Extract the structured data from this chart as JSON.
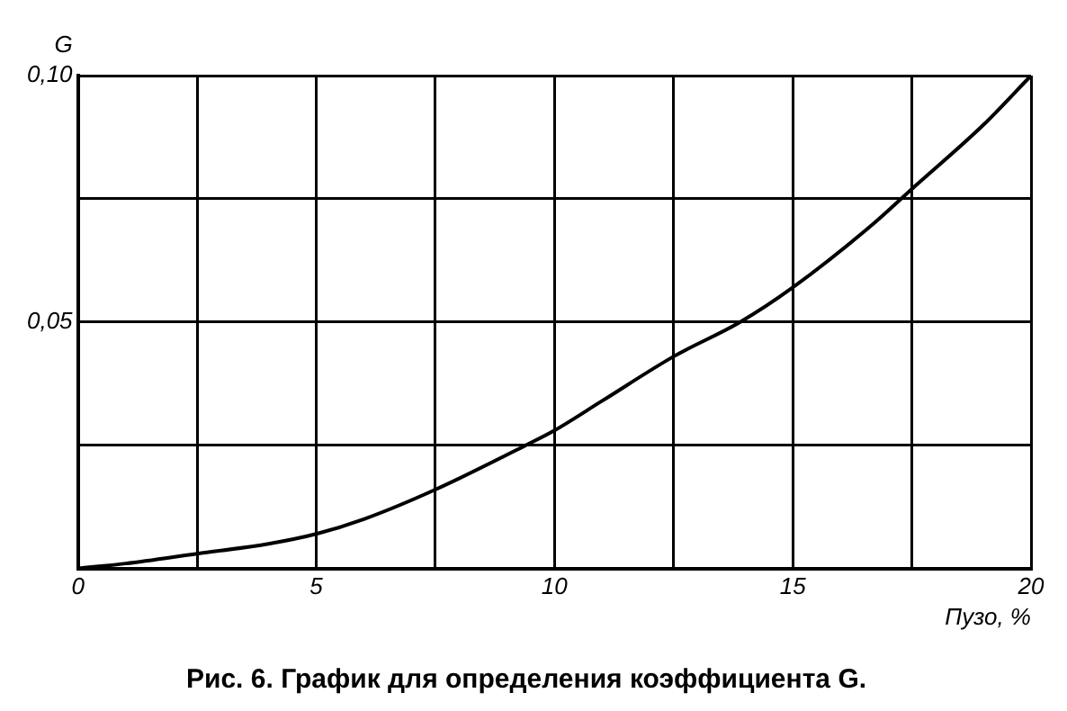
{
  "chart_data": {
    "type": "line",
    "title": "Рис. 6. График для определения коэффициента G.",
    "xlabel": "Пузо, %",
    "ylabel": "G",
    "x": [
      0,
      1,
      2.5,
      4,
      5,
      6,
      7.5,
      9.4,
      10,
      11,
      12.5,
      13.9,
      15,
      16.7,
      17.5,
      19,
      20
    ],
    "series": [
      {
        "color": "#000000",
        "values": [
          0,
          0.001,
          0.003,
          0.005,
          0.007,
          0.01,
          0.016,
          0.025,
          0.028,
          0.034,
          0.043,
          0.05,
          0.057,
          0.07,
          0.077,
          0.09,
          0.1
        ]
      }
    ],
    "xlim": [
      0,
      20
    ],
    "ylim": [
      0,
      0.1
    ],
    "xticks": [
      0,
      {
        "value": 2.5,
        "label": null
      },
      5,
      {
        "value": 7.5,
        "label": null
      },
      10,
      {
        "value": 12.5,
        "label": null
      },
      15,
      {
        "value": 17.5,
        "label": null
      },
      20
    ],
    "yticks": [
      {
        "value": 0,
        "label": null
      },
      {
        "value": 0.025,
        "label": null
      },
      {
        "value": 0.05,
        "label": "0,05"
      },
      {
        "value": 0.075,
        "label": null
      },
      {
        "value": 0.1,
        "label": "0,10"
      }
    ],
    "grid": true,
    "legend": false,
    "marker": "none",
    "line_style": "solid"
  }
}
